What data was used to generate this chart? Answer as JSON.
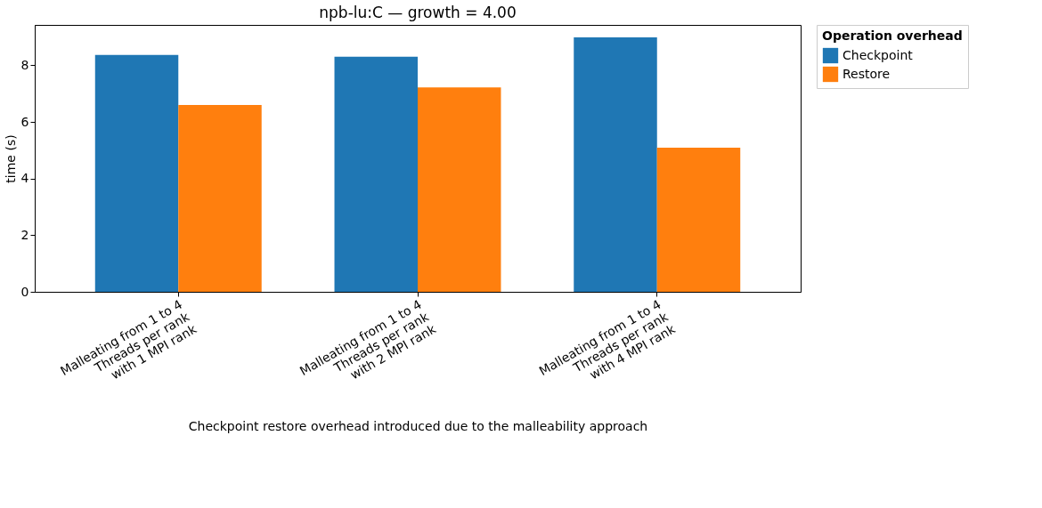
{
  "chart_data": {
    "type": "bar",
    "title": "npb-lu:C — growth = 4.00",
    "categories": [
      "Malleating from 1 to 4\nThreads per rank\nwith 1 MPI rank",
      "Malleating from 1 to 4\nThreads per rank\nwith 2 MPI rank",
      "Malleating from 1 to 4\nThreads per rank\nwith 4 MPI rank"
    ],
    "series": [
      {
        "name": "Checkpoint",
        "color": "#1f77b4",
        "values": [
          8.37,
          8.31,
          8.99
        ]
      },
      {
        "name": "Restore",
        "color": "#ff7f0e",
        "values": [
          6.6,
          7.22,
          5.09
        ]
      }
    ],
    "xlabel": "Checkpoint restore overhead introduced due to the malleability approach",
    "ylabel": "time (s)",
    "legend_title": "Operation overhead",
    "ylim": [
      0,
      9.43
    ],
    "yticks": [
      0,
      2,
      4,
      6,
      8
    ],
    "grid": false,
    "legend": "right"
  }
}
